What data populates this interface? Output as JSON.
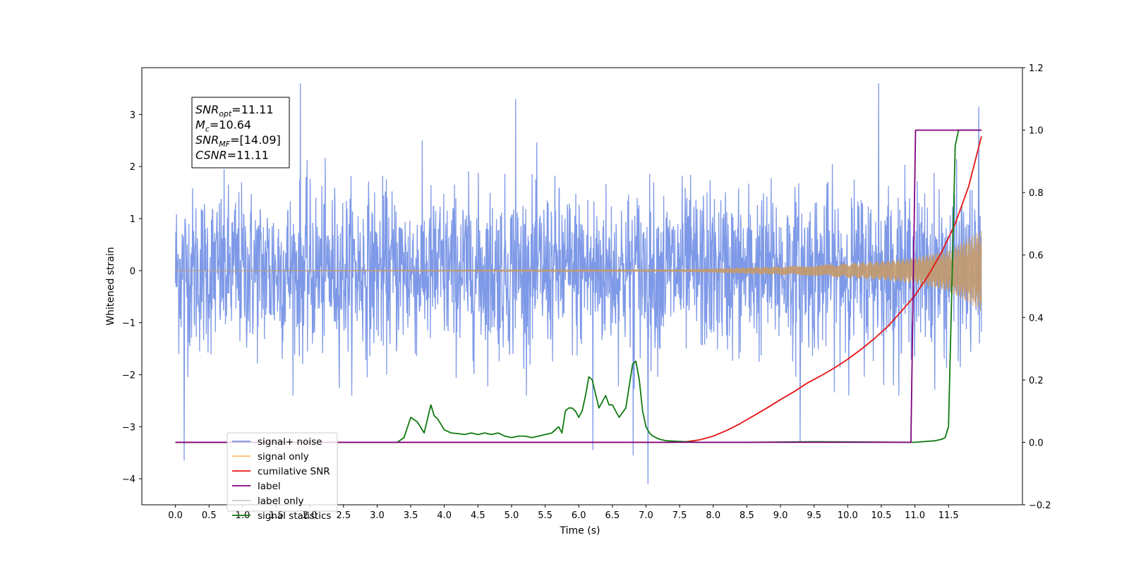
{
  "chart_data": {
    "type": "line",
    "xlabel": "Time (s)",
    "ylabel": "Whitened strain",
    "xlim": [
      -0.5,
      12.6
    ],
    "ylim_left": [
      -4.5,
      3.9
    ],
    "ylim_right": [
      -0.2,
      1.2
    ],
    "x_ticks": [
      "0.0",
      "0.5",
      "1.0",
      "1.5",
      "2.0",
      "2.5",
      "3.0",
      "3.5",
      "4.0",
      "4.5",
      "5.0",
      "5.5",
      "6.0",
      "6.5",
      "7.0",
      "7.5",
      "8.0",
      "8.5",
      "9.0",
      "9.5",
      "10.0",
      "10.5",
      "11.0",
      "11.5"
    ],
    "y_left_ticks": [
      "3",
      "2",
      "1",
      "0",
      "−1",
      "−2",
      "−3",
      "−4"
    ],
    "y_right_ticks": [
      "1.2",
      "1.0",
      "0.8",
      "0.6",
      "0.4",
      "0.2",
      "0.0",
      "−0.2"
    ],
    "grid": false,
    "legend_position": "lower-left",
    "annotation_lines": [
      {
        "base": "SNR",
        "sub": "opt",
        "value": "=11.11"
      },
      {
        "base": "M",
        "sub": "c",
        "value": "=10.64"
      },
      {
        "base": "SNR",
        "sub": "MF",
        "value": "=[14.09]"
      },
      {
        "base": "CSNR",
        "sub": "",
        "value": "=11.11"
      }
    ],
    "series": [
      {
        "name": "signal+ noise",
        "axis": "left",
        "color": "#7793e6",
        "description_values": {
          "x_range": [
            0.0,
            11.99
          ],
          "typical_band": [
            -1.7,
            1.9
          ],
          "peaks_max": [
            {
              "x": 1.86,
              "y": 3.6
            },
            {
              "x": 10.46,
              "y": 3.6
            },
            {
              "x": 5.06,
              "y": 3.3
            },
            {
              "x": 11.95,
              "y": 3.15
            }
          ],
          "peaks_min": [
            {
              "x": 0.13,
              "y": -3.65
            },
            {
              "x": 7.03,
              "y": -4.1
            },
            {
              "x": 6.81,
              "y": -3.55
            },
            {
              "x": 6.21,
              "y": -3.45
            },
            {
              "x": 9.29,
              "y": -3.3
            }
          ]
        }
      },
      {
        "name": "signal only",
        "axis": "left",
        "color": "#ffbf6a",
        "envelope": [
          [
            0.0,
            0.0
          ],
          [
            7.5,
            0.02
          ],
          [
            8.5,
            0.06
          ],
          [
            9.5,
            0.1
          ],
          [
            10.5,
            0.18
          ],
          [
            11.0,
            0.25
          ],
          [
            11.5,
            0.4
          ],
          [
            11.99,
            0.78
          ]
        ]
      },
      {
        "name": "cumilative SNR",
        "axis": "right",
        "color": "#e81313",
        "x": [
          0.0,
          7.4,
          7.6,
          7.8,
          8.0,
          8.2,
          8.4,
          8.6,
          8.8,
          9.0,
          9.2,
          9.4,
          9.6,
          9.8,
          10.0,
          10.2,
          10.4,
          10.6,
          10.8,
          11.0,
          11.2,
          11.4,
          11.6,
          11.8,
          11.99
        ],
        "y": [
          0.0,
          0.0,
          0.002,
          0.008,
          0.02,
          0.038,
          0.06,
          0.085,
          0.11,
          0.137,
          0.162,
          0.19,
          0.213,
          0.238,
          0.266,
          0.298,
          0.333,
          0.372,
          0.42,
          0.47,
          0.535,
          0.61,
          0.7,
          0.82,
          0.98
        ]
      },
      {
        "name": "label",
        "axis": "right",
        "color": "#800080",
        "x": [
          0.0,
          10.94,
          11.01,
          11.99
        ],
        "y": [
          0.0,
          0.0,
          1.0,
          1.0
        ]
      },
      {
        "name": "label only",
        "axis": "right",
        "color": "#cccccc",
        "x": [],
        "y": []
      },
      {
        "name": "signal statistics",
        "axis": "right",
        "color": "#117a11",
        "x": [
          0.0,
          3.3,
          3.4,
          3.5,
          3.6,
          3.7,
          3.8,
          3.85,
          3.9,
          4.0,
          4.1,
          4.2,
          4.3,
          4.4,
          4.5,
          4.6,
          4.7,
          4.8,
          4.9,
          5.0,
          5.1,
          5.2,
          5.3,
          5.4,
          5.5,
          5.6,
          5.7,
          5.75,
          5.8,
          5.85,
          5.9,
          5.95,
          6.0,
          6.05,
          6.1,
          6.15,
          6.2,
          6.3,
          6.4,
          6.45,
          6.5,
          6.6,
          6.7,
          6.8,
          6.85,
          6.9,
          6.95,
          7.0,
          7.05,
          7.1,
          7.2,
          7.3,
          7.5,
          7.8,
          8.5,
          9.5,
          11.0,
          11.3,
          11.4,
          11.45,
          11.5,
          11.55,
          11.6,
          11.65,
          11.99
        ],
        "y": [
          0.0,
          0.0,
          0.015,
          0.08,
          0.065,
          0.03,
          0.12,
          0.085,
          0.075,
          0.04,
          0.03,
          0.028,
          0.025,
          0.03,
          0.025,
          0.03,
          0.025,
          0.03,
          0.02,
          0.015,
          0.02,
          0.02,
          0.015,
          0.02,
          0.025,
          0.03,
          0.05,
          0.03,
          0.1,
          0.11,
          0.11,
          0.1,
          0.08,
          0.1,
          0.15,
          0.21,
          0.2,
          0.11,
          0.15,
          0.12,
          0.12,
          0.08,
          0.11,
          0.25,
          0.26,
          0.2,
          0.1,
          0.05,
          0.03,
          0.02,
          0.01,
          0.005,
          0.003,
          0.0,
          0.0,
          0.002,
          0.0,
          0.005,
          0.01,
          0.015,
          0.05,
          0.5,
          0.95,
          1.0,
          1.0
        ]
      }
    ]
  }
}
